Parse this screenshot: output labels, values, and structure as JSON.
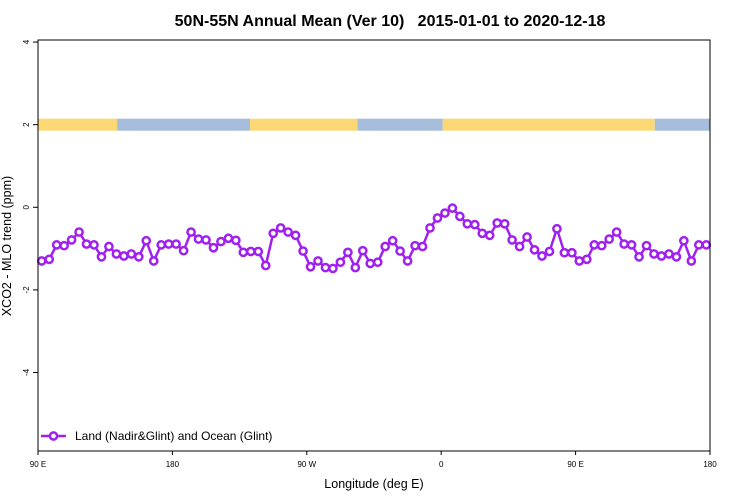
{
  "chart_data": {
    "type": "line",
    "title": "50N-55N Annual Mean (Ver 10)   2015-01-01 to 2020-12-18",
    "xlabel": "Longitude (deg E)",
    "ylabel": "XCO2 - MLO trend (ppm)",
    "x_ticks": [
      {
        "lon": 90,
        "label": "90 E"
      },
      {
        "lon": 180,
        "label": "180"
      },
      {
        "lon": -90,
        "label": "90 W"
      },
      {
        "lon": 0,
        "label": "0"
      },
      {
        "lon": 90,
        "label": "90 E"
      },
      {
        "lon": 180,
        "label": "180"
      }
    ],
    "x_range": [
      "90 E",
      "180 (after one full wrap)"
    ],
    "y_ticks": [
      4,
      2,
      0,
      -2,
      -4
    ],
    "ylim": [
      -5.9,
      4.05
    ],
    "grid": false,
    "legend_position": "bottom-left",
    "series": [
      {
        "name": "Land (Nadir&Glint) and Ocean (Glint)",
        "color": "#a020f0",
        "marker": "open-circle",
        "x": [
          92.5,
          97.5,
          102.5,
          107.5,
          112.5,
          117.5,
          122.5,
          127.5,
          132.5,
          137.5,
          142.5,
          147.5,
          152.5,
          157.5,
          162.5,
          167.5,
          172.5,
          177.5,
          -177.5,
          -172.5,
          -167.5,
          -162.5,
          -157.5,
          -152.5,
          -147.5,
          -142.5,
          -137.5,
          -132.5,
          -127.5,
          -122.5,
          -117.5,
          -112.5,
          -107.5,
          -102.5,
          -97.5,
          -92.5,
          -87.5,
          -82.5,
          -77.5,
          -72.5,
          -67.5,
          -62.5,
          -57.5,
          -52.5,
          -47.5,
          -42.5,
          -37.5,
          -32.5,
          -27.5,
          -22.5,
          -17.5,
          -12.5,
          -7.5,
          -2.5,
          2.5,
          7.5,
          12.5,
          17.5,
          22.5,
          27.5,
          32.5,
          37.5,
          42.5,
          47.5,
          52.5,
          57.5,
          62.5,
          67.5,
          72.5,
          77.5,
          82.5,
          87.5,
          92.5,
          97.5,
          102.5,
          107.5,
          112.5,
          117.5,
          122.5,
          127.5,
          132.5,
          137.5,
          142.5,
          147.5,
          152.5,
          157.5,
          162.5,
          167.5,
          172.5,
          177.5
        ],
        "values": [
          -1.3,
          -1.26,
          -0.91,
          -0.93,
          -0.79,
          -0.6,
          -0.89,
          -0.91,
          -1.2,
          -0.95,
          -1.13,
          -1.18,
          -1.13,
          -1.2,
          -0.81,
          -1.3,
          -0.91,
          -0.89,
          -0.89,
          -1.05,
          -0.6,
          -0.77,
          -0.79,
          -0.98,
          -0.83,
          -0.75,
          -0.8,
          -1.09,
          -1.07,
          -1.07,
          -1.41,
          -0.63,
          -0.5,
          -0.6,
          -0.68,
          -1.06,
          -1.44,
          -1.3,
          -1.46,
          -1.48,
          -1.33,
          -1.09,
          -1.46,
          -1.05,
          -1.36,
          -1.33,
          -0.95,
          -0.81,
          -1.06,
          -1.3,
          -0.93,
          -0.95,
          -0.5,
          -0.26,
          -0.14,
          -0.02,
          -0.22,
          -0.4,
          -0.42,
          -0.63,
          -0.68,
          -0.38,
          -0.4,
          -0.79,
          -0.95,
          -0.72,
          -1.03,
          -1.18,
          -1.07,
          -0.52,
          -1.1,
          -1.1,
          -1.3,
          -1.26,
          -0.91,
          -0.93,
          -0.77,
          -0.6,
          -0.89,
          -0.91,
          -1.2,
          -0.93,
          -1.13,
          -1.18,
          -1.13,
          -1.2,
          -0.81,
          -1.3,
          -0.91,
          -0.91
        ]
      }
    ],
    "surface_strip": {
      "y_level": 2,
      "colors": {
        "land": "#fcd874",
        "ocean": "#a5bcdb"
      },
      "segments": [
        {
          "type": "land",
          "from": 90,
          "to": 143
        },
        {
          "type": "ocean",
          "from": 143,
          "to": -128
        },
        {
          "type": "land",
          "from": -128,
          "to": -56
        },
        {
          "type": "ocean",
          "from": -56,
          "to": 1
        },
        {
          "type": "land",
          "from": 1,
          "to": 143
        },
        {
          "type": "ocean",
          "from": 143,
          "to": 180
        }
      ]
    }
  }
}
